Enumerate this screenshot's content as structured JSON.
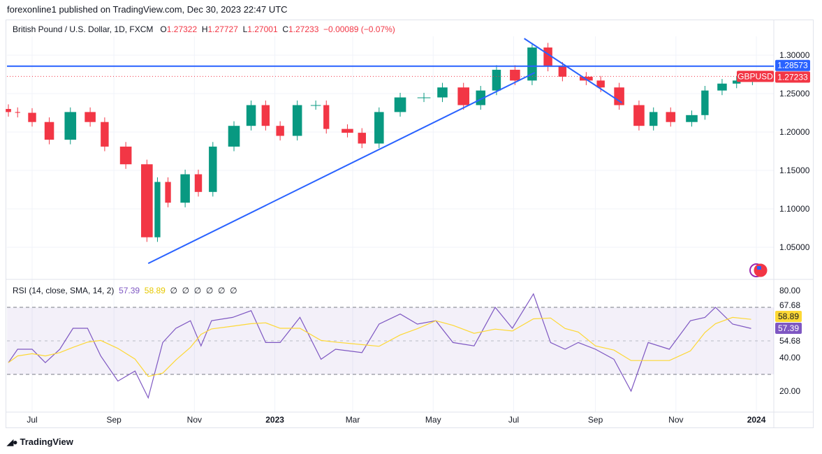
{
  "header": {
    "published": "forexonline1 published on TradingView.com, Dec 30, 2023 22:47 UTC"
  },
  "legend": {
    "symbol": "British Pound / U.S. Dollar, 1D, FXCM",
    "o_label": "O",
    "o": "1.27322",
    "h_label": "H",
    "h": "1.27727",
    "l_label": "L",
    "l": "1.27001",
    "c_label": "C",
    "c": "1.27233",
    "change": "−0.00089 (−0.07%)"
  },
  "rsi_legend": {
    "title": "RSI (14, close, SMA, 14, 2)",
    "rsi": "57.39",
    "sma": "58.89",
    "empties": [
      "∅",
      "∅",
      "∅",
      "∅",
      "∅",
      "∅"
    ]
  },
  "price_badges": {
    "line": "1.28573",
    "symbol": "GBPUSD",
    "last": "1.27233"
  },
  "rsi_badges": {
    "sma": "58.89",
    "rsi": "57.39"
  },
  "footer": {
    "brand": "TradingView"
  },
  "colors": {
    "up": "#089981",
    "down": "#f23645",
    "line": "#2962ff",
    "rsi": "#7e57c2",
    "sma": "#fdd835"
  },
  "chart_data": [
    {
      "type": "candlestick",
      "price_axis": {
        "ticks": [
          "1.30000",
          "1.25000",
          "1.20000",
          "1.15000",
          "1.10000",
          "1.05000"
        ],
        "values": [
          1.3,
          1.25,
          1.2,
          1.15,
          1.1,
          1.05
        ],
        "range": [
          1.015,
          1.327
        ]
      },
      "time_axis": {
        "ticks": [
          "Jul",
          "Sep",
          "Nov",
          "2023",
          "Mar",
          "May",
          "Jul",
          "Sep",
          "Nov",
          "2024"
        ],
        "tick_dates": [
          "2022-07-01",
          "2022-09-01",
          "2022-11-01",
          "2023-01-01",
          "2023-03-01",
          "2023-05-01",
          "2023-07-01",
          "2023-09-01",
          "2023-11-01",
          "2024-01-01"
        ]
      },
      "closes": [
        [
          "2022-06-13",
          1.226
        ],
        [
          "2022-06-20",
          1.225
        ],
        [
          "2022-07-01",
          1.213
        ],
        [
          "2022-07-14",
          1.19
        ],
        [
          "2022-07-30",
          1.226
        ],
        [
          "2022-08-14",
          1.213
        ],
        [
          "2022-08-25",
          1.181
        ],
        [
          "2022-09-10",
          1.158
        ],
        [
          "2022-09-26",
          1.063
        ],
        [
          "2022-10-04",
          1.135
        ],
        [
          "2022-10-12",
          1.108
        ],
        [
          "2022-10-25",
          1.145
        ],
        [
          "2022-11-04",
          1.122
        ],
        [
          "2022-11-15",
          1.181
        ],
        [
          "2022-12-01",
          1.208
        ],
        [
          "2022-12-14",
          1.235
        ],
        [
          "2022-12-25",
          1.208
        ],
        [
          "2023-01-05",
          1.195
        ],
        [
          "2023-01-18",
          1.235
        ],
        [
          "2023-02-01",
          1.235
        ],
        [
          "2023-02-09",
          1.204
        ],
        [
          "2023-02-25",
          1.199
        ],
        [
          "2023-03-08",
          1.185
        ],
        [
          "2023-03-21",
          1.226
        ],
        [
          "2023-04-06",
          1.245
        ],
        [
          "2023-04-24",
          1.245
        ],
        [
          "2023-05-08",
          1.258
        ],
        [
          "2023-05-24",
          1.235
        ],
        [
          "2023-06-06",
          1.254
        ],
        [
          "2023-06-18",
          1.281
        ],
        [
          "2023-07-02",
          1.267
        ],
        [
          "2023-07-15",
          1.31
        ],
        [
          "2023-07-27",
          1.285
        ],
        [
          "2023-08-07",
          1.272
        ],
        [
          "2023-08-25",
          1.267
        ],
        [
          "2023-09-05",
          1.258
        ],
        [
          "2023-09-19",
          1.235
        ],
        [
          "2023-10-04",
          1.208
        ],
        [
          "2023-10-15",
          1.226
        ],
        [
          "2023-10-28",
          1.213
        ],
        [
          "2023-11-13",
          1.222
        ],
        [
          "2023-11-23",
          1.254
        ],
        [
          "2023-12-06",
          1.263
        ],
        [
          "2023-12-17",
          1.267
        ],
        [
          "2023-12-29",
          1.2723
        ]
      ],
      "horizontal_line": 1.28573,
      "last_price": 1.27233,
      "trend_lines": [
        [
          [
            "2022-09-27",
            1.029
          ],
          [
            "2023-07-17",
            1.2773
          ]
        ],
        [
          [
            "2023-07-09",
            1.3217
          ],
          [
            "2023-09-21",
            1.2381
          ]
        ]
      ]
    },
    {
      "type": "line",
      "title": "RSI (14, close, SMA, 14, 2)",
      "y_axis": {
        "ticks": [
          "80.00",
          "67.68",
          "54.68",
          "40.00",
          "20.00"
        ],
        "tick_values": [
          80,
          67.68,
          54.68,
          40,
          20
        ],
        "range": [
          12,
          86
        ]
      },
      "band": [
        30,
        70
      ],
      "rsi": [
        [
          "2022-06-13",
          37
        ],
        [
          "2022-06-20",
          45
        ],
        [
          "2022-07-01",
          45
        ],
        [
          "2022-07-11",
          37
        ],
        [
          "2022-07-22",
          45
        ],
        [
          "2022-08-01",
          57.5
        ],
        [
          "2022-08-12",
          57.5
        ],
        [
          "2022-08-22",
          41
        ],
        [
          "2022-09-04",
          26
        ],
        [
          "2022-09-17",
          32
        ],
        [
          "2022-09-27",
          16
        ],
        [
          "2022-10-08",
          49
        ],
        [
          "2022-10-18",
          57.5
        ],
        [
          "2022-10-29",
          62
        ],
        [
          "2022-11-06",
          47
        ],
        [
          "2022-11-14",
          62
        ],
        [
          "2022-11-30",
          64
        ],
        [
          "2022-12-14",
          68
        ],
        [
          "2022-12-25",
          49
        ],
        [
          "2023-01-05",
          49
        ],
        [
          "2023-01-20",
          64
        ],
        [
          "2023-02-05",
          39
        ],
        [
          "2023-02-16",
          45
        ],
        [
          "2023-03-08",
          43
        ],
        [
          "2023-03-21",
          60
        ],
        [
          "2023-04-06",
          66
        ],
        [
          "2023-04-19",
          60
        ],
        [
          "2023-05-03",
          62
        ],
        [
          "2023-05-16",
          49
        ],
        [
          "2023-06-01",
          47
        ],
        [
          "2023-06-17",
          70
        ],
        [
          "2023-06-30",
          57.5
        ],
        [
          "2023-07-16",
          78
        ],
        [
          "2023-07-29",
          49
        ],
        [
          "2023-08-09",
          45
        ],
        [
          "2023-08-19",
          49
        ],
        [
          "2023-09-01",
          45
        ],
        [
          "2023-09-15",
          39
        ],
        [
          "2023-09-28",
          20
        ],
        [
          "2023-10-11",
          49
        ],
        [
          "2023-10-27",
          45
        ],
        [
          "2023-11-12",
          62
        ],
        [
          "2023-11-23",
          64
        ],
        [
          "2023-12-01",
          70
        ],
        [
          "2023-12-14",
          60
        ],
        [
          "2023-12-28",
          57.39
        ]
      ],
      "last_rsi": 57.39,
      "last_sma": 58.89
    }
  ]
}
